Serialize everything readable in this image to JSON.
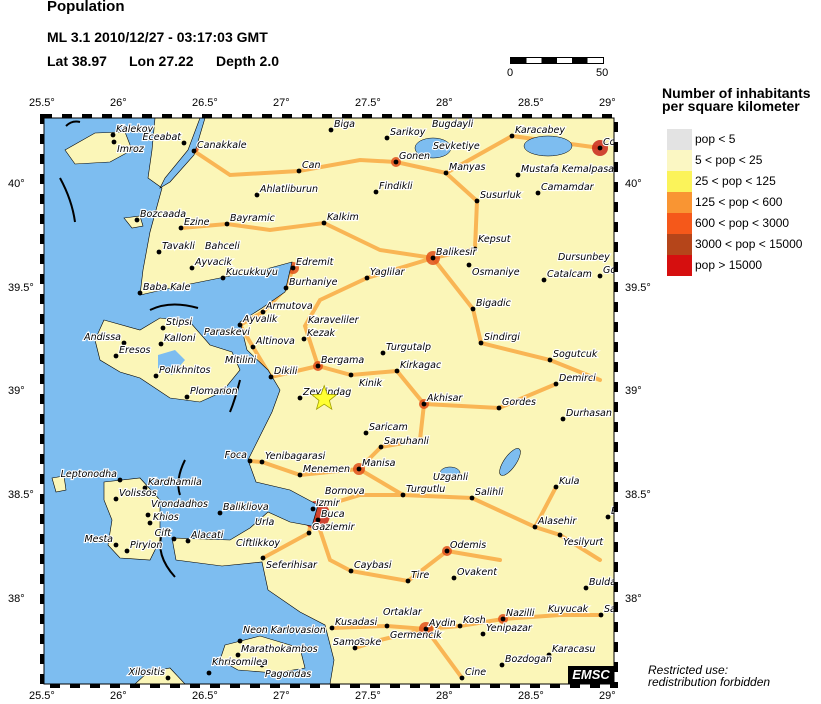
{
  "header": {
    "title": "Population",
    "event": "ML 3.1  2010/12/27 - 03:17:03 GMT",
    "lat_label": "Lat 38.97",
    "lon_label": "Lon  27.22",
    "depth_label": "Depth  2.0"
  },
  "scale_bar": {
    "start": "0",
    "end": "50"
  },
  "axes": {
    "lon_ticks": [
      "25.5°",
      "26°",
      "26.5°",
      "27°",
      "27.5°",
      "28°",
      "28.5°",
      "29°"
    ],
    "lat_ticks": [
      "40°",
      "39.5°",
      "39°",
      "38.5°",
      "38°"
    ]
  },
  "epicenter": {
    "lat": 38.97,
    "lon": 27.22,
    "marker": "yellow-star",
    "color": "#ffff33"
  },
  "legend": {
    "title_line1": "Number of inhabitants",
    "title_line2": "per square kilometer",
    "items": [
      {
        "label": "pop < 5",
        "color": "#e3e3e3"
      },
      {
        "label": "5 < pop < 25",
        "color": "#fbf7c3"
      },
      {
        "label": "25 < pop < 125",
        "color": "#fbf35a"
      },
      {
        "label": "125 < pop < 600",
        "color": "#f99533"
      },
      {
        "label": "600 < pop < 3000",
        "color": "#f5581a"
      },
      {
        "label": "3000 < pop < 15000",
        "color": "#b5451a"
      },
      {
        "label": "pop > 15000",
        "color": "#d60f0f"
      }
    ]
  },
  "colors": {
    "sea": "#7dbdf0",
    "land": "#fbf6b8",
    "road": "#f9a033"
  },
  "cities": [
    "Kalekoy",
    "Imroz",
    "Eceabat",
    "Canakkale",
    "Can",
    "Ahlatliburun",
    "Bozcaada",
    "Ezine",
    "Bayramic",
    "Kalkim",
    "Tavakli",
    "Bahceli",
    "Ayvacik",
    "Kucukkuyu",
    "Edremit",
    "Burhaniye",
    "Baba Kale",
    "Armutova",
    "Stipsi",
    "Ayvalik",
    "Andissa",
    "Kalloni",
    "Paraskevi",
    "Eresos",
    "Altinova",
    "Karaveliler",
    "Kezak",
    "Polikhnitos",
    "Mitilini",
    "Plomarion",
    "Dikili",
    "Bergama",
    "Zeytindag",
    "Biga",
    "Sarikoy",
    "Bugdayli",
    "Sevketiye",
    "Gonen",
    "Manyas",
    "Karacabey",
    "Co",
    "Mustafa Kemalpasa",
    "Findikli",
    "Camamdar",
    "Susurluk",
    "Kepsut",
    "Balikesir",
    "Osmaniye",
    "Dursunbey",
    "Catalcam",
    "Go",
    "Yaglilar",
    "Bigadic",
    "Sindirgi",
    "Turgutalp",
    "Sogutcuk",
    "Kinik",
    "Kirkagac",
    "Demirci",
    "Akhisar",
    "Gordes",
    "Durhasan",
    "Saricam",
    "Saruhanli",
    "Foca",
    "Yenibagarasi",
    "Menemen",
    "Manisa",
    "Leptonodha",
    "Kardhamila",
    "Volissos",
    "Vrondadhos",
    "Khios",
    "Bornova",
    "Izmir",
    "Balikliova",
    "Buca",
    "Urla",
    "Gaziemir",
    "Cift",
    "Alacati",
    "Ciftlikkoy",
    "Mesta",
    "Piryion",
    "Seferihisar",
    "Uzganli",
    "Turgutlu",
    "Salihli",
    "Kula",
    "Bu",
    "Alasehir",
    "Yesilyurt",
    "Odemis",
    "Caybasi",
    "Tire",
    "Ovakent",
    "Bulda",
    "Nazilli",
    "Kuyucak",
    "Sa",
    "Ortaklar",
    "Kusadasi",
    "Germencik",
    "Aydin",
    "Kosh",
    "Yenipazar",
    "Soke",
    "Karacasu",
    "Bozdogan",
    "Cine",
    "Neon Karlovasion",
    "Samos",
    "Marathokambos",
    "Pagondas",
    "Khrisomilea",
    "Xilositis"
  ],
  "logo": "EMSC",
  "footer": {
    "line1": "Restricted use:",
    "line2": "redistribution forbidden"
  }
}
